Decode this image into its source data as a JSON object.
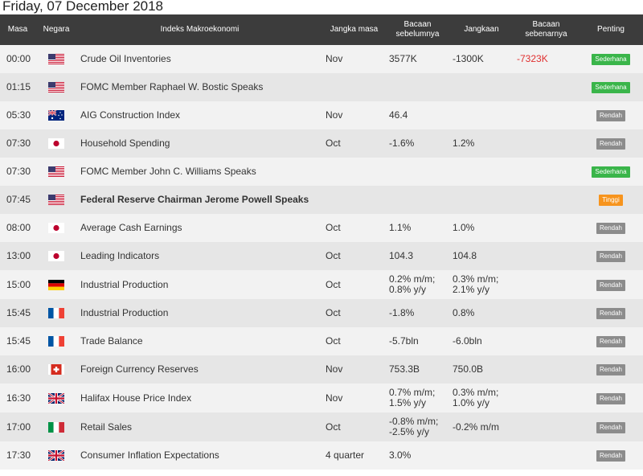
{
  "date_title": "Friday, 07 December 2018",
  "headers": {
    "time": "Masa",
    "country": "Negara",
    "event": "Indeks Makroekonomi",
    "period": "Jangka masa",
    "previous_l1": "Bacaan",
    "previous_l2": "sebelumnya",
    "forecast": "Jangkaan",
    "actual_l1": "Bacaan",
    "actual_l2": "sebenarnya",
    "importance": "Penting"
  },
  "colors": {
    "header_bg": "#3c3c3c",
    "high": "#f7941d",
    "medium": "#3ab54a",
    "low": "#8c8c8c",
    "negative": "#e03030"
  },
  "rows": [
    {
      "time": "00:00",
      "country": "us-flag-icon",
      "event": "Crude Oil Inventories",
      "period": "Nov",
      "prev1": "3577K",
      "prev2": "",
      "fc1": "-1300K",
      "fc2": "",
      "act": "-7323K",
      "imp": "Sederhana"
    },
    {
      "time": "01:15",
      "country": "us-flag-icon",
      "event": "FOMC Member Raphael W. Bostic Speaks",
      "period": "",
      "prev1": "",
      "prev2": "",
      "fc1": "",
      "fc2": "",
      "act": "",
      "imp": "Sederhana"
    },
    {
      "time": "05:30",
      "country": "au-flag-icon",
      "event": "AIG Construction Index",
      "period": "Nov",
      "prev1": "46.4",
      "prev2": "",
      "fc1": "",
      "fc2": "",
      "act": "",
      "imp": "Rendah"
    },
    {
      "time": "07:30",
      "country": "jp-flag-icon",
      "event": "Household Spending",
      "period": "Oct",
      "prev1": "-1.6%",
      "prev2": "",
      "fc1": "1.2%",
      "fc2": "",
      "act": "",
      "imp": "Rendah"
    },
    {
      "time": "07:30",
      "country": "us-flag-icon",
      "event": "FOMC Member John C. Williams Speaks",
      "period": "",
      "prev1": "",
      "prev2": "",
      "fc1": "",
      "fc2": "",
      "act": "",
      "imp": "Sederhana"
    },
    {
      "time": "07:45",
      "country": "us-flag-icon",
      "event": "Federal Reserve Chairman Jerome Powell Speaks",
      "period": "",
      "prev1": "",
      "prev2": "",
      "fc1": "",
      "fc2": "",
      "act": "",
      "imp": "Tinggi"
    },
    {
      "time": "08:00",
      "country": "jp-flag-icon",
      "event": "Average Cash Earnings",
      "period": "Oct",
      "prev1": "1.1%",
      "prev2": "",
      "fc1": "1.0%",
      "fc2": "",
      "act": "",
      "imp": "Rendah"
    },
    {
      "time": "13:00",
      "country": "jp-flag-icon",
      "event": "Leading Indicators",
      "period": "Oct",
      "prev1": "104.3",
      "prev2": "",
      "fc1": "104.8",
      "fc2": "",
      "act": "",
      "imp": "Rendah"
    },
    {
      "time": "15:00",
      "country": "de-flag-icon",
      "event": "Industrial Production",
      "period": "Oct",
      "prev1": "0.2% m/m;",
      "prev2": "0.8% y/y",
      "fc1": "0.3% m/m;",
      "fc2": "2.1% y/y",
      "act": "",
      "imp": "Rendah"
    },
    {
      "time": "15:45",
      "country": "fr-flag-icon",
      "event": "Industrial Production",
      "period": "Oct",
      "prev1": "-1.8%",
      "prev2": "",
      "fc1": "0.8%",
      "fc2": "",
      "act": "",
      "imp": "Rendah"
    },
    {
      "time": "15:45",
      "country": "fr-flag-icon",
      "event": "Trade Balance",
      "period": "Oct",
      "prev1": "-5.7bln",
      "prev2": "",
      "fc1": "-6.0bln",
      "fc2": "",
      "act": "",
      "imp": "Rendah"
    },
    {
      "time": "16:00",
      "country": "ch-flag-icon",
      "event": "Foreign Currency Reserves",
      "period": "Nov",
      "prev1": "753.3B",
      "prev2": "",
      "fc1": "750.0B",
      "fc2": "",
      "act": "",
      "imp": "Rendah"
    },
    {
      "time": "16:30",
      "country": "gb-flag-icon",
      "event": "Halifax House Price Index",
      "period": "Nov",
      "prev1": "0.7% m/m;",
      "prev2": "1.5% y/y",
      "fc1": "0.3% m/m;",
      "fc2": "1.0% y/y",
      "act": "",
      "imp": "Rendah"
    },
    {
      "time": "17:00",
      "country": "it-flag-icon",
      "event": "Retail Sales",
      "period": "Oct",
      "prev1": "-0.8% m/m;",
      "prev2": "-2.5% y/y",
      "fc1": "-0.2% m/m",
      "fc2": "",
      "act": "",
      "imp": "Rendah"
    },
    {
      "time": "17:30",
      "country": "gb-flag-icon",
      "event": "Consumer Inflation Expectations",
      "period": "4 quarter",
      "prev1": "3.0%",
      "prev2": "",
      "fc1": "",
      "fc2": "",
      "act": "",
      "imp": "Rendah"
    }
  ]
}
